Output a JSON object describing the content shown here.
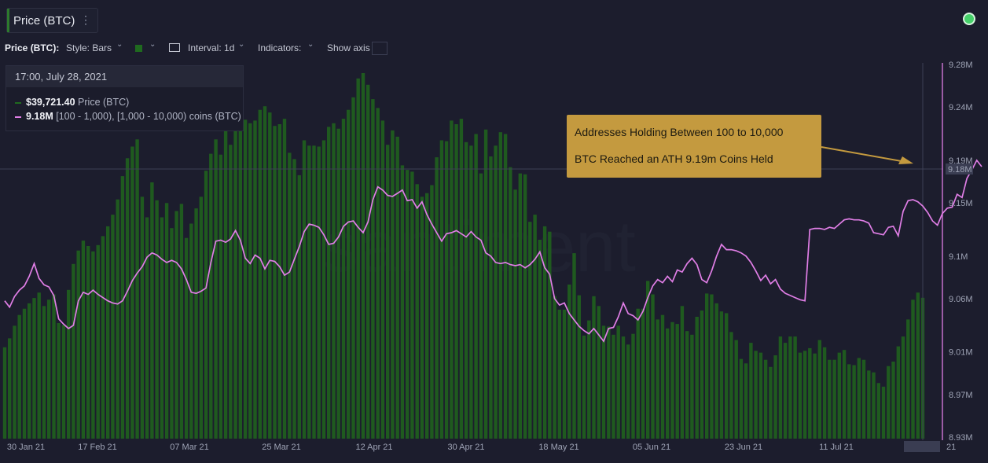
{
  "header": {
    "tab_title": "Price (BTC)",
    "menu_glyph": "⋮"
  },
  "toolbar": {
    "metric_label": "Price (BTC):",
    "style_label": "Style: Bars",
    "interval_label": "Interval: 1d",
    "indicators_label": "Indicators:",
    "show_axis_label": "Show axis",
    "chevron": "⌄"
  },
  "tooltip": {
    "datetime": "17:00, July 28, 2021",
    "price_value": "$39,721.40",
    "price_name": "Price (BTC)",
    "holdings_value": "9.18M",
    "holdings_name": "[100 - 1,000), [1,000 - 10,000) coins (BTC)"
  },
  "annotation": {
    "line1": "Addresses Holding Between 100 to 10,000",
    "line2": "BTC Reached an ATH 9.19m Coins Held"
  },
  "colors": {
    "background": "#1c1d2d",
    "bars": "#1f5a1f",
    "line": "#e07ee6",
    "callout": "#c49a3f",
    "status": "#46d16a"
  },
  "chart_data": {
    "type": "bar+line",
    "title": "Price (BTC)",
    "x_labels": [
      "30 Jan 21",
      "17 Feb 21",
      "07 Mar 21",
      "25 Mar 21",
      "12 Apr 21",
      "30 Apr 21",
      "18 May 21",
      "05 Jun 21",
      "23 Jun 21",
      "11 Jul 21",
      "28 Jul 21"
    ],
    "x_extra_label": "21",
    "y_right_ticks": [
      "9.28M",
      "9.24M",
      "9.19M",
      "9.15M",
      "9.1M",
      "9.06M",
      "9.01M",
      "8.97M",
      "8.93M"
    ],
    "ylim": [
      8.93,
      9.28
    ],
    "current_value_label": "9.18M",
    "series": [
      {
        "name": "Price (BTC)",
        "kind": "bar",
        "values": [
          34200,
          35200,
          36600,
          37800,
          38500,
          39100,
          39700,
          40300,
          38800,
          39500,
          40100,
          36900,
          36700,
          40600,
          43500,
          45000,
          46100,
          45500,
          44900,
          45600,
          46600,
          47700,
          49000,
          50700,
          53300,
          55300,
          56600,
          57400,
          51000,
          48700,
          52600,
          50600,
          48700,
          50300,
          47500,
          49400,
          50200,
          46400,
          48000,
          49700,
          51000,
          53900,
          55800,
          57400,
          55700,
          58400,
          56800,
          59100,
          60300,
          59600,
          59200,
          59500,
          60700,
          61100,
          60400,
          58900,
          59100,
          59700,
          55900,
          55200,
          53400,
          57300,
          56700,
          56700,
          56600,
          57300,
          58800,
          59200,
          58600,
          59700,
          60700,
          62100,
          64200,
          64800,
          63500,
          61900,
          60900,
          59500,
          56800,
          58400,
          57700,
          54500,
          54000,
          53800,
          52400,
          51000,
          51400,
          52300,
          55400,
          57300,
          57200,
          59500,
          59100,
          59700,
          57100,
          56700,
          58000,
          53600,
          58500,
          55500,
          56700,
          58200,
          58000,
          54300,
          51800,
          53600,
          53500,
          48200,
          49000,
          46200,
          47700,
          47100,
          39900,
          38400,
          38400,
          41200,
          44700,
          40000,
          35500,
          37200,
          39900,
          38800,
          36600,
          36500,
          35600,
          36600,
          35400,
          34500,
          35700,
          38500,
          38500,
          41600,
          40100,
          37300,
          37800,
          36300,
          37000,
          36800,
          38800,
          36000,
          35600,
          37600,
          38300,
          40200,
          40100,
          39100,
          38200,
          38000,
          35900,
          35000,
          32900,
          32400,
          34700,
          33800,
          33600,
          32800,
          32000,
          33300,
          35400,
          34700,
          35400,
          35400,
          33600,
          33800,
          34100,
          33500,
          35000,
          34200,
          32800,
          32800,
          33600,
          33900,
          32300,
          32200,
          33000,
          32800,
          31600,
          31400,
          30200,
          29800,
          32100,
          32600,
          34300,
          35400,
          37300,
          39500,
          40300,
          39721
        ]
      },
      {
        "name": "[100 - 1,000), [1,000 - 10,000) coins (BTC)",
        "kind": "line",
        "values": [
          9.058,
          9.052,
          9.062,
          9.068,
          9.072,
          9.081,
          9.093,
          9.079,
          9.073,
          9.071,
          9.063,
          9.041,
          9.036,
          9.032,
          9.035,
          9.058,
          9.066,
          9.064,
          9.068,
          9.064,
          9.061,
          9.058,
          9.056,
          9.055,
          9.058,
          9.067,
          9.077,
          9.084,
          9.09,
          9.099,
          9.103,
          9.101,
          9.097,
          9.094,
          9.096,
          9.094,
          9.088,
          9.078,
          9.066,
          9.065,
          9.067,
          9.07,
          9.094,
          9.114,
          9.115,
          9.113,
          9.116,
          9.124,
          9.115,
          9.098,
          9.093,
          9.101,
          9.098,
          9.088,
          9.096,
          9.095,
          9.09,
          9.082,
          9.085,
          9.097,
          9.109,
          9.123,
          9.13,
          9.129,
          9.127,
          9.12,
          9.111,
          9.112,
          9.118,
          9.128,
          9.132,
          9.133,
          9.127,
          9.122,
          9.132,
          9.153,
          9.165,
          9.162,
          9.157,
          9.156,
          9.159,
          9.162,
          9.152,
          9.153,
          9.145,
          9.151,
          9.139,
          9.13,
          9.122,
          9.114,
          9.121,
          9.122,
          9.124,
          9.121,
          9.118,
          9.123,
          9.118,
          9.115,
          9.103,
          9.1,
          9.094,
          9.093,
          9.094,
          9.092,
          9.091,
          9.092,
          9.089,
          9.092,
          9.097,
          9.104,
          9.089,
          9.083,
          9.06,
          9.054,
          9.056,
          9.046,
          9.04,
          9.034,
          9.03,
          9.027,
          9.032,
          9.026,
          9.02,
          9.032,
          9.033,
          9.043,
          9.056,
          9.046,
          9.044,
          9.04,
          9.048,
          9.061,
          9.072,
          9.078,
          9.075,
          9.081,
          9.076,
          9.087,
          9.085,
          9.093,
          9.098,
          9.092,
          9.078,
          9.075,
          9.086,
          9.1,
          9.111,
          9.106,
          9.106,
          9.105,
          9.103,
          9.1,
          9.094,
          9.086,
          9.077,
          9.082,
          9.074,
          9.078,
          9.069,
          9.065,
          9.063,
          9.061,
          9.059,
          9.058,
          9.125,
          9.126,
          9.126,
          9.125,
          9.127,
          9.126,
          9.13,
          9.134,
          9.135,
          9.134,
          9.134,
          9.133,
          9.131,
          9.122,
          9.121,
          9.12,
          9.127,
          9.128,
          9.119,
          9.142,
          9.152,
          9.153,
          9.151,
          9.147,
          9.141,
          9.133,
          9.129,
          9.14,
          9.145,
          9.146,
          9.158,
          9.155,
          9.173,
          9.181,
          9.19,
          9.184
        ]
      }
    ]
  }
}
